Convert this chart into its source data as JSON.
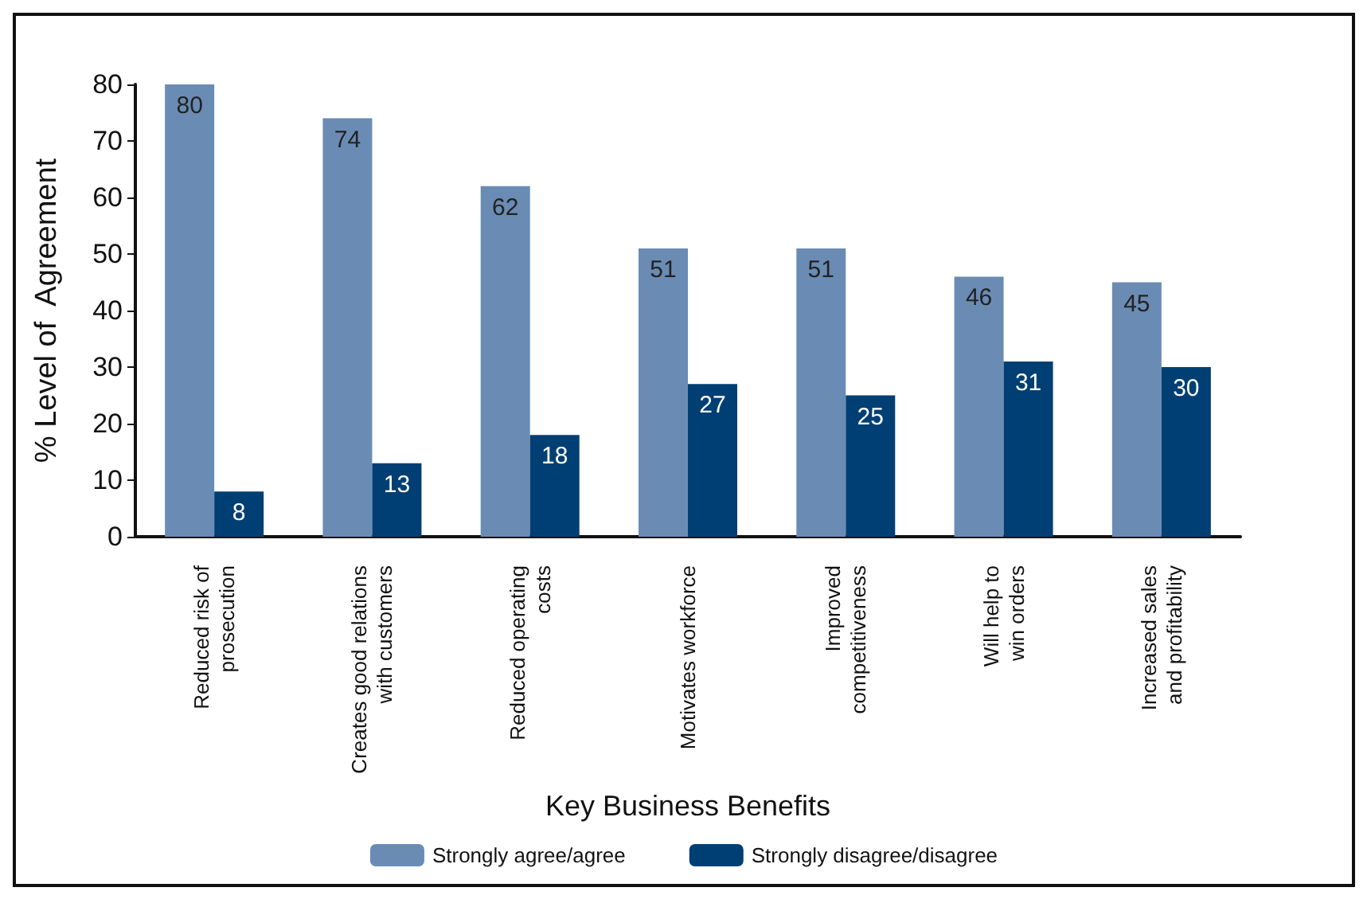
{
  "chart_data": {
    "type": "bar",
    "xlabel": "Key Business Benefits",
    "ylabel": "% Level of  Agreement",
    "categories": [
      "Reduced risk of\nprosecution",
      "Creates good relations\nwith customers",
      "Reduced operating\ncosts",
      "Motivates workforce",
      "Improved\ncompetitiveness",
      "Will help to\nwin orders",
      "Increased sales\nand profitability"
    ],
    "series": [
      {
        "name": "Strongly agree/agree",
        "color": "#6a8cb4",
        "values": [
          80,
          74,
          62,
          51,
          51,
          46,
          45
        ]
      },
      {
        "name": "Strongly disagree/disagree",
        "color": "#003f73",
        "values": [
          8,
          13,
          18,
          27,
          25,
          31,
          30
        ]
      }
    ],
    "ylim": [
      0,
      80
    ],
    "yticks": [
      0,
      10,
      20,
      30,
      40,
      50,
      60,
      70,
      80
    ],
    "grid": false,
    "legend": "bottom",
    "data_labels": true
  }
}
